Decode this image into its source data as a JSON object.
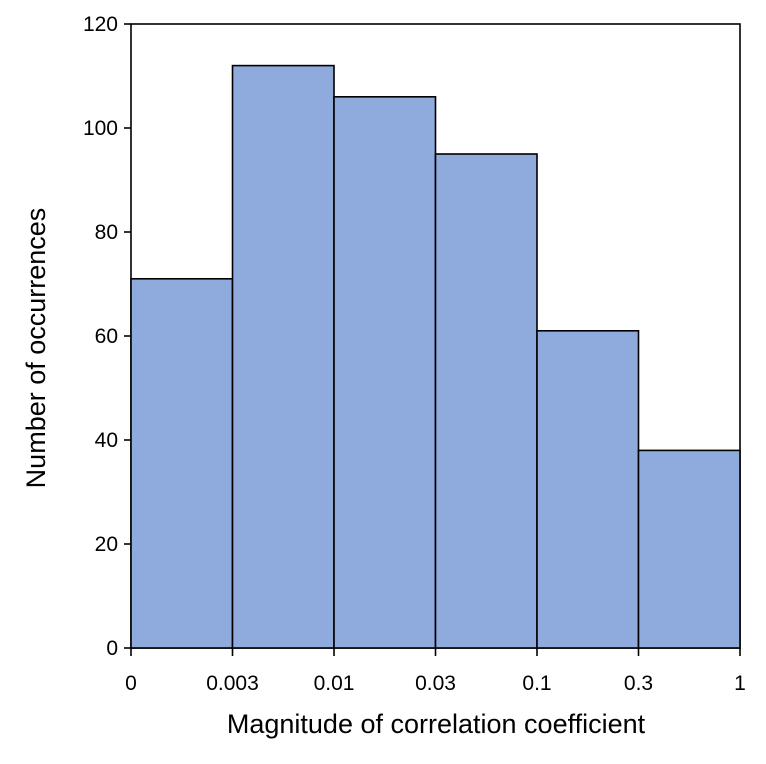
{
  "chart_data": {
    "type": "bar",
    "title": "",
    "xlabel": "Magnitude of correlation coefficient",
    "ylabel": "Number of occurrences",
    "bin_edges": [
      "0",
      "0.003",
      "0.01",
      "0.03",
      "0.1",
      "0.3",
      "1"
    ],
    "values": [
      71,
      112,
      106,
      95,
      61,
      38
    ],
    "ylim": [
      0,
      120
    ],
    "yticks": [
      0,
      20,
      40,
      60,
      80,
      100,
      120
    ],
    "grid": false,
    "bar_color": "#8FAADC",
    "edge_color": "#000000"
  }
}
